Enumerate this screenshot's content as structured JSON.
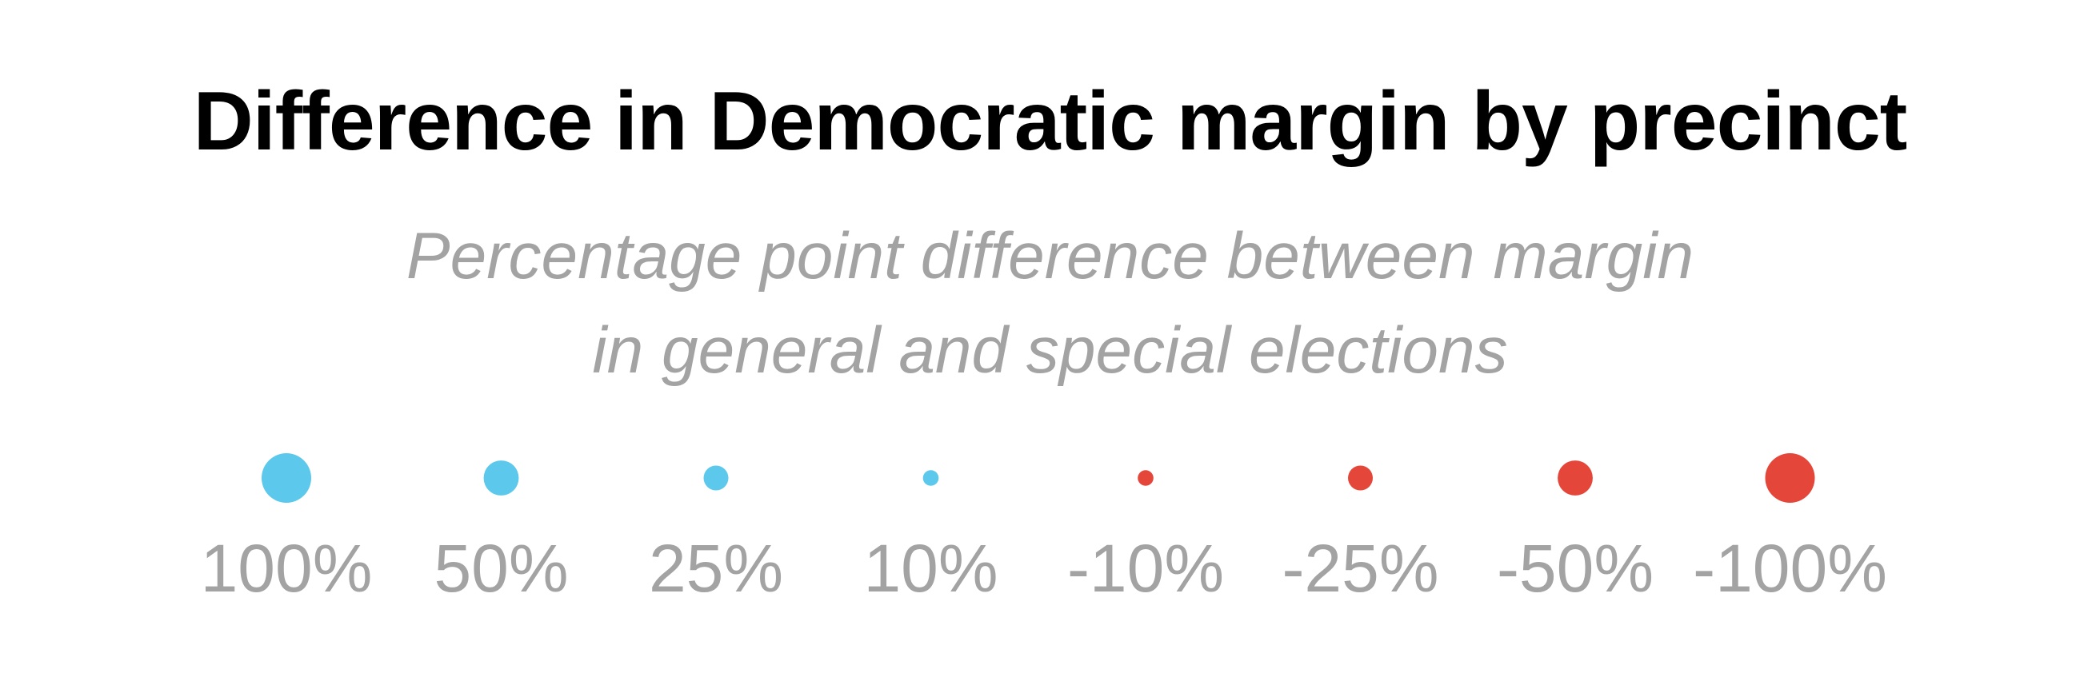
{
  "title": "Difference in Democratic margin by precinct",
  "subtitle_lines": [
    "Percentage point difference between margin",
    "in general and special elections"
  ],
  "colors": {
    "positive": "#5bc8ec",
    "negative": "#e5463a",
    "label": "#a3a3a3",
    "title": "#000000"
  },
  "chart_data": {
    "type": "scatter",
    "title": "Difference in Democratic margin by precinct",
    "subtitle": "Percentage point difference between margin in general and special elections",
    "legend": [
      {
        "label": "100%",
        "value": 100
      },
      {
        "label": "50%",
        "value": 50
      },
      {
        "label": "25%",
        "value": 25
      },
      {
        "label": "10%",
        "value": 10
      },
      {
        "label": "-10%",
        "value": -10
      },
      {
        "label": "-25%",
        "value": -25
      },
      {
        "label": "-50%",
        "value": -50
      },
      {
        "label": "-100%",
        "value": -100
      }
    ]
  }
}
